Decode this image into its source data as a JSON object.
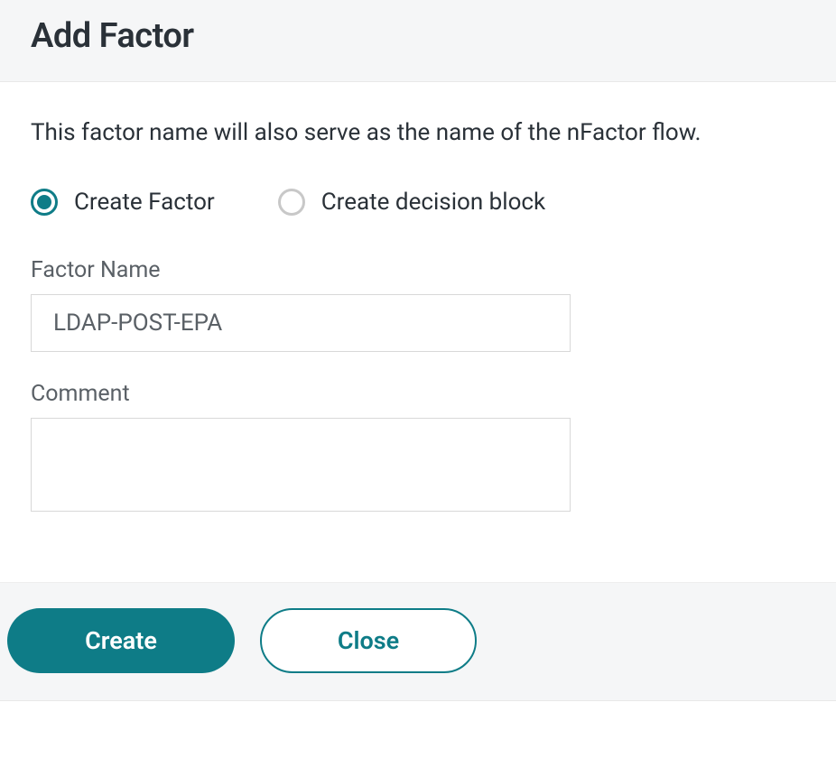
{
  "header": {
    "title": "Add Factor"
  },
  "body": {
    "description": "This factor name will also serve as the name of the nFactor flow.",
    "radios": {
      "create_factor": {
        "label": "Create Factor",
        "selected": true
      },
      "create_decision_block": {
        "label": "Create decision block",
        "selected": false
      }
    },
    "fields": {
      "factor_name": {
        "label": "Factor Name",
        "value": "LDAP-POST-EPA"
      },
      "comment": {
        "label": "Comment",
        "value": ""
      }
    }
  },
  "footer": {
    "create_label": "Create",
    "close_label": "Close"
  },
  "colors": {
    "accent": "#0e7c87",
    "header_bg": "#f5f6f7",
    "body_bg": "#ffffff",
    "text_primary": "#2a3138",
    "text_secondary": "#5a6066",
    "border": "#d8d8d8"
  }
}
